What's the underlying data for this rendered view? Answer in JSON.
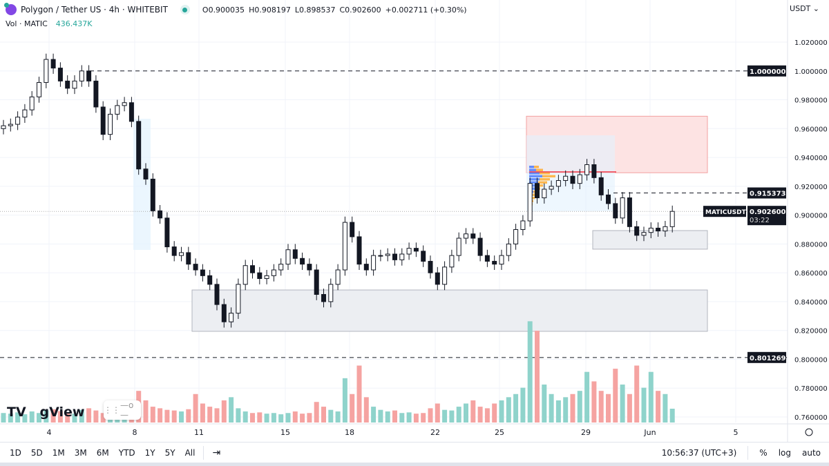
{
  "legend": {
    "title": "Polygon / Tether US · 4h · WHITEBIT",
    "open": "O0.900035",
    "high": "H0.908197",
    "low": "L0.898537",
    "close": "C0.902600",
    "change": "+0.002711 (+0.30%)",
    "vol_label": "Vol · MATIC",
    "vol_value": "436.437K"
  },
  "currency": "USDT",
  "watermark": "TV   gView",
  "colors": {
    "up": "#26a69a",
    "down": "#ef5350",
    "vol_up": "#8fd3cb",
    "vol_down": "#f5a3a1",
    "zone_red": "#fde3e3",
    "zone_gray": "#eceef2"
  },
  "price_axis": {
    "ticks": [
      "1.020000",
      "1.000000",
      "0.980000",
      "0.960000",
      "0.940000",
      "0.920000",
      "0.900000",
      "0.880000",
      "0.860000",
      "0.840000",
      "0.820000",
      "0.800000",
      "0.780000",
      "0.760000"
    ],
    "range": [
      0.76,
      1.02
    ]
  },
  "price_labels": {
    "level_1": "1.000000",
    "level_2": "0.915373",
    "level_3": "0.801269",
    "symbol": "MATICUSDT",
    "last": "0.902600",
    "countdown": "03:22"
  },
  "levels": [
    1.0,
    0.915373,
    0.801269
  ],
  "zones": [
    {
      "top": 0.9686,
      "bottom": 0.9294,
      "kind": "red"
    },
    {
      "top": 0.8893,
      "bottom": 0.8764,
      "kind": "gray"
    },
    {
      "top": 0.8481,
      "bottom": 0.8194,
      "kind": "gray"
    }
  ],
  "time_axis": [
    "4",
    "8",
    "11",
    "15",
    "18",
    "22",
    "25",
    "29",
    "Jun",
    "5"
  ],
  "closes": [
    0.962,
    0.963,
    0.968,
    0.973,
    0.982,
    0.992,
    1.008,
    1.002,
    0.993,
    0.988,
    0.993,
    1.0,
    0.993,
    0.975,
    0.956,
    0.97,
    0.976,
    0.978,
    0.965,
    0.932,
    0.925,
    0.903,
    0.898,
    0.878,
    0.872,
    0.874,
    0.866,
    0.862,
    0.858,
    0.852,
    0.838,
    0.826,
    0.832,
    0.852,
    0.865,
    0.86,
    0.856,
    0.858,
    0.862,
    0.866,
    0.876,
    0.87,
    0.866,
    0.862,
    0.845,
    0.84,
    0.852,
    0.862,
    0.895,
    0.885,
    0.866,
    0.862,
    0.872,
    0.872,
    0.873,
    0.869,
    0.873,
    0.877,
    0.875,
    0.868,
    0.86,
    0.852,
    0.864,
    0.872,
    0.884,
    0.887,
    0.884,
    0.872,
    0.868,
    0.866,
    0.872,
    0.88,
    0.89,
    0.896,
    0.922,
    0.912,
    0.918,
    0.92,
    0.924,
    0.927,
    0.922,
    0.928,
    0.935,
    0.926,
    0.914,
    0.908,
    0.898,
    0.912,
    0.892,
    0.886,
    0.888,
    0.891,
    0.889,
    0.892,
    0.9026
  ],
  "volumes_k": [
    300,
    280,
    320,
    260,
    350,
    300,
    380,
    420,
    360,
    300,
    280,
    400,
    450,
    380,
    300,
    260,
    280,
    320,
    600,
    1000,
    700,
    500,
    450,
    400,
    380,
    350,
    420,
    900,
    600,
    500,
    450,
    700,
    800,
    450,
    350,
    300,
    320,
    280,
    300,
    260,
    300,
    350,
    280,
    300,
    650,
    500,
    400,
    350,
    1400,
    900,
    1800,
    800,
    500,
    400,
    350,
    380,
    300,
    320,
    280,
    300,
    450,
    600,
    400,
    380,
    500,
    600,
    700,
    500,
    450,
    600,
    700,
    800,
    900,
    1100,
    3200,
    2900,
    1200,
    900,
    700,
    800,
    900,
    1000,
    1600,
    1300,
    1000,
    900,
    1700,
    1200,
    900,
    1800,
    1100,
    1600,
    1000,
    900,
    436
  ],
  "bottom_bar": {
    "ranges": [
      "1D",
      "5D",
      "1M",
      "3M",
      "6M",
      "YTD",
      "1Y",
      "5Y",
      "All"
    ],
    "time": "10:56:37 (UTC+3)",
    "percent": "%",
    "log": "log",
    "auto": "auto"
  }
}
